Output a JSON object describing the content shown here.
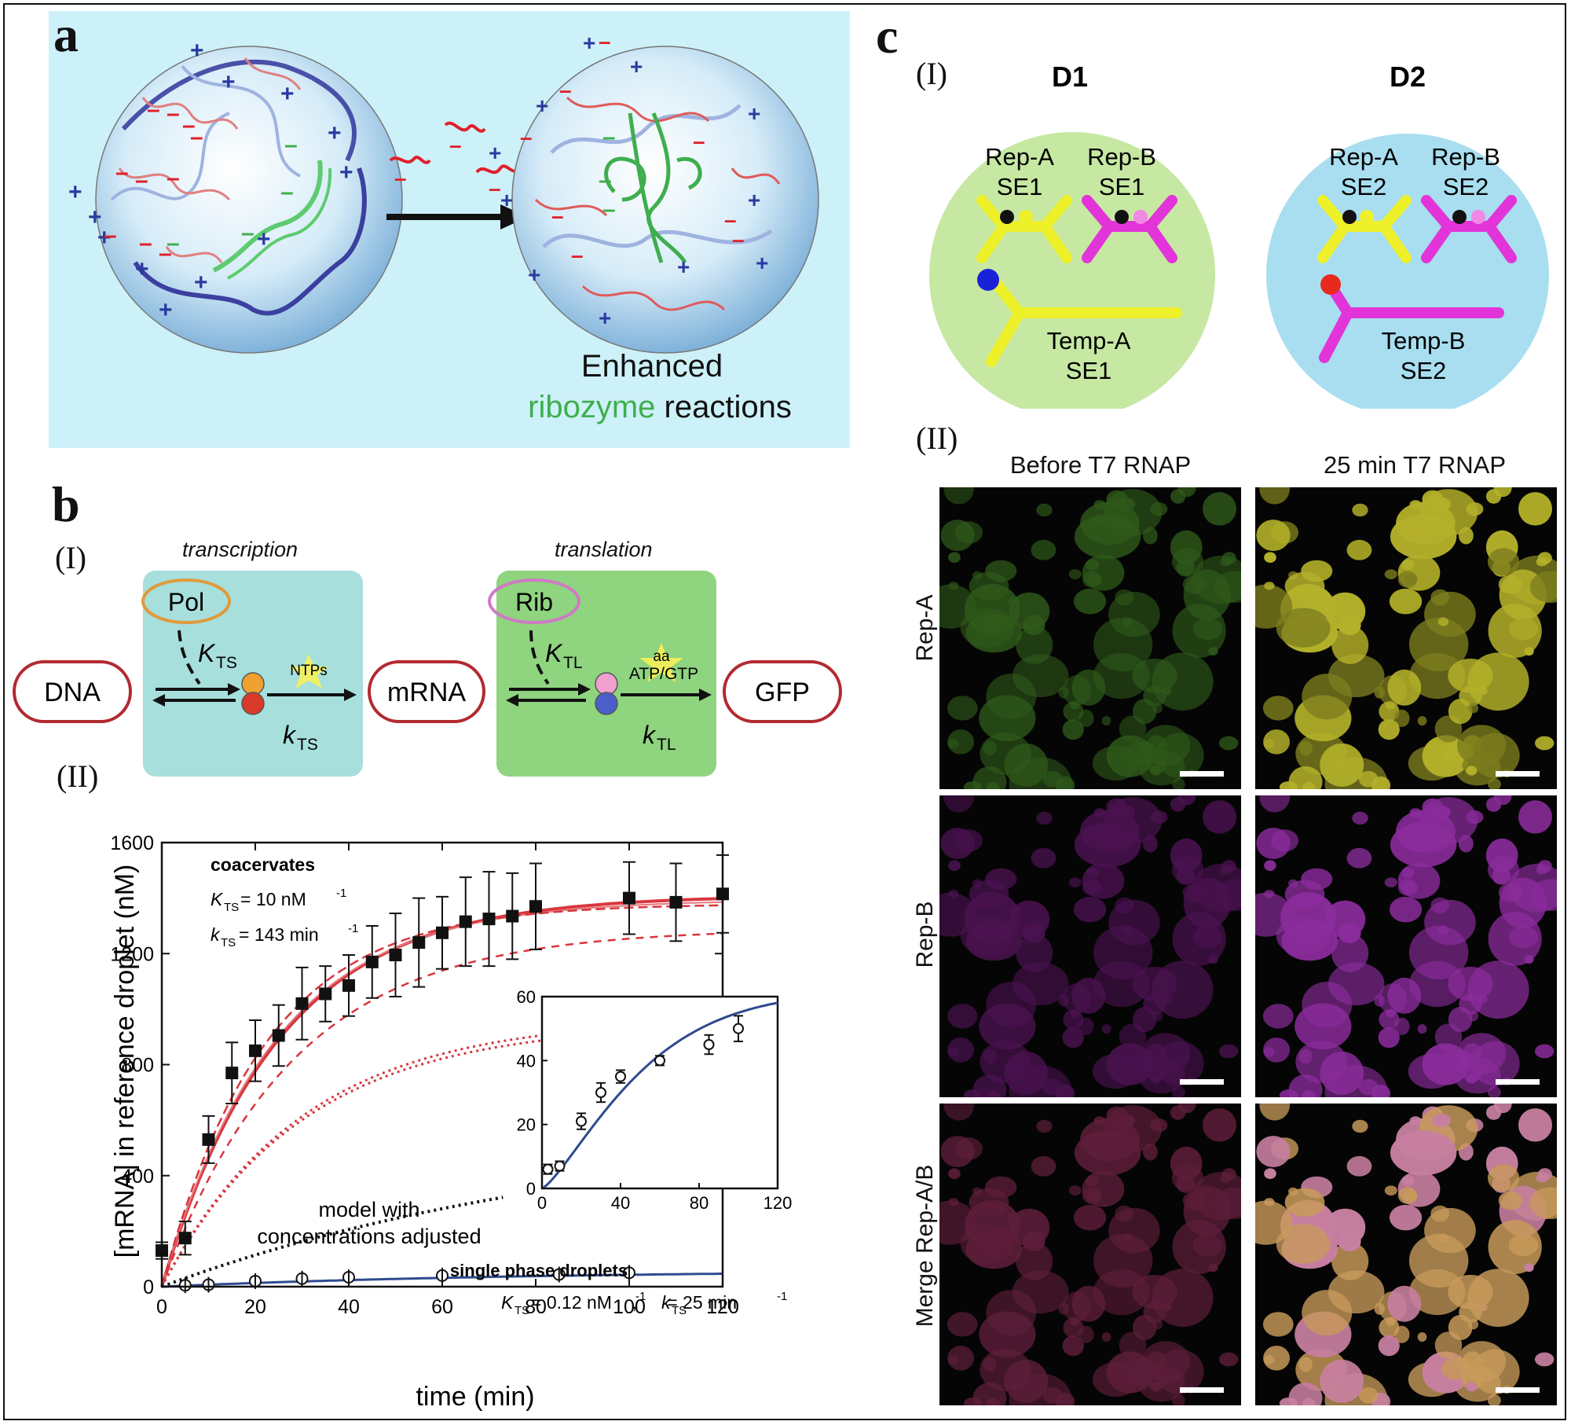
{
  "panel_a": {
    "letter": "a",
    "caption_line1": "Enhanced",
    "caption_word_green": "ribozyme",
    "caption_word_black": " reactions",
    "plus": "+",
    "minus": "–"
  },
  "panel_b": {
    "letter": "b",
    "part1": "(I)",
    "part2": "(II)",
    "scheme": {
      "transcription": "transcription",
      "translation": "translation",
      "dna": "DNA",
      "mrna": "mRNA",
      "gfp": "GFP",
      "pol": "Pol",
      "rib": "Rib",
      "k_ts_cap": "K",
      "k_ts_sub": "TS",
      "k_ts_small": "k",
      "k_tl_cap": "K",
      "k_tl_sub": "TL",
      "k_tl_small": "k",
      "ntps": "NTPs",
      "aa": "aa",
      "atp_gtp": "ATP/GTP"
    },
    "plot": {
      "ylabel": "[mRNA]  in reference droplet  (nM)",
      "xlabel": "time  (min)",
      "coacervates": "coacervates",
      "coac_K": "= 10 nM",
      "coac_k": "= 143 min",
      "single_phase": "single phase droplets",
      "single_params": "= 0.12 nM    ,      = 25 min",
      "model_line1": "model with",
      "model_line2": "concentrations adjusted",
      "K_sym": "K",
      "k_sym": "k",
      "TS": "TS",
      "exp": "-1"
    }
  },
  "panel_c": {
    "letter": "c",
    "part1": "(I)",
    "part2": "(II)",
    "d1": {
      "title": "D1",
      "rep_a": "Rep-A",
      "rep_a_se": "SE1",
      "rep_b": "Rep-B",
      "rep_b_se": "SE1",
      "temp": "Temp-A",
      "temp_se": "SE1",
      "color": "#c6e8a2"
    },
    "d2": {
      "title": "D2",
      "rep_a": "Rep-A",
      "rep_a_se": "SE2",
      "rep_b": "Rep-B",
      "rep_b_se": "SE2",
      "temp": "Temp-B",
      "temp_se": "SE2",
      "color": "#a8def0"
    },
    "col_before": "Before T7 RNAP",
    "col_after": "25 min T7 RNAP",
    "row_a": "Rep-A",
    "row_b": "Rep-B",
    "row_merge": "Merge Rep-A/B"
  },
  "colors": {
    "panel_a_bg": "#cdf1f8",
    "red_fit": "#d9363e",
    "blue_fit": "#2e4b8f",
    "panel_b_transcription_bg": "#a7dfdc",
    "panel_b_translation_bg": "#8fd47f"
  },
  "chart_data": [
    {
      "type": "scatter",
      "title": "",
      "xlabel": "time  (min)",
      "ylabel": "[mRNA]  in reference droplet  (nM)",
      "xlim": [
        0,
        120
      ],
      "ylim": [
        0,
        1600
      ],
      "xticks": [
        0,
        20,
        40,
        60,
        80,
        100,
        120
      ],
      "yticks": [
        0,
        400,
        800,
        1200,
        1600
      ],
      "series": [
        {
          "name": "coacervates",
          "marker": "square",
          "points": [
            {
              "x": 0,
              "y": 130,
              "err": 30
            },
            {
              "x": 5,
              "y": 175,
              "err": 60
            },
            {
              "x": 10,
              "y": 530,
              "err": 85
            },
            {
              "x": 15,
              "y": 770,
              "err": 110
            },
            {
              "x": 20,
              "y": 850,
              "err": 110
            },
            {
              "x": 25,
              "y": 905,
              "err": 110
            },
            {
              "x": 30,
              "y": 1020,
              "err": 130
            },
            {
              "x": 35,
              "y": 1055,
              "err": 100
            },
            {
              "x": 40,
              "y": 1085,
              "err": 110
            },
            {
              "x": 45,
              "y": 1170,
              "err": 130
            },
            {
              "x": 50,
              "y": 1195,
              "err": 150
            },
            {
              "x": 55,
              "y": 1240,
              "err": 160
            },
            {
              "x": 60,
              "y": 1275,
              "err": 130
            },
            {
              "x": 65,
              "y": 1315,
              "err": 160
            },
            {
              "x": 70,
              "y": 1325,
              "err": 170
            },
            {
              "x": 75,
              "y": 1335,
              "err": 155
            },
            {
              "x": 80,
              "y": 1370,
              "err": 155
            },
            {
              "x": 100,
              "y": 1400,
              "err": 130
            },
            {
              "x": 110,
              "y": 1385,
              "err": 140
            },
            {
              "x": 120,
              "y": 1415,
              "err": 140
            }
          ]
        },
        {
          "name": "single phase droplets",
          "marker": "circle",
          "points": [
            {
              "x": 5,
              "y": 5,
              "err": 3
            },
            {
              "x": 10,
              "y": 7,
              "err": 3
            },
            {
              "x": 20,
              "y": 20,
              "err": 3
            },
            {
              "x": 30,
              "y": 29,
              "err": 4
            },
            {
              "x": 40,
              "y": 34,
              "err": 3
            },
            {
              "x": 60,
              "y": 40,
              "err": 3
            },
            {
              "x": 85,
              "y": 44,
              "err": 5
            },
            {
              "x": 100,
              "y": 50,
              "err": 6
            }
          ]
        }
      ]
    },
    {
      "type": "scatter",
      "title": "",
      "xlim": [
        0,
        120
      ],
      "ylim": [
        0,
        60
      ],
      "xticks": [
        0,
        40,
        80,
        120
      ],
      "yticks": [
        0,
        20,
        40,
        60
      ],
      "series": [
        {
          "name": "single phase droplets",
          "marker": "circle",
          "points": [
            {
              "x": 3,
              "y": 6,
              "err": 1.5
            },
            {
              "x": 9,
              "y": 7,
              "err": 1.5
            },
            {
              "x": 20,
              "y": 21,
              "err": 2.5
            },
            {
              "x": 30,
              "y": 30,
              "err": 3
            },
            {
              "x": 40,
              "y": 35,
              "err": 2
            },
            {
              "x": 60,
              "y": 40,
              "err": 1.5
            },
            {
              "x": 85,
              "y": 45,
              "err": 3
            },
            {
              "x": 100,
              "y": 50,
              "err": 4
            }
          ]
        }
      ]
    }
  ]
}
